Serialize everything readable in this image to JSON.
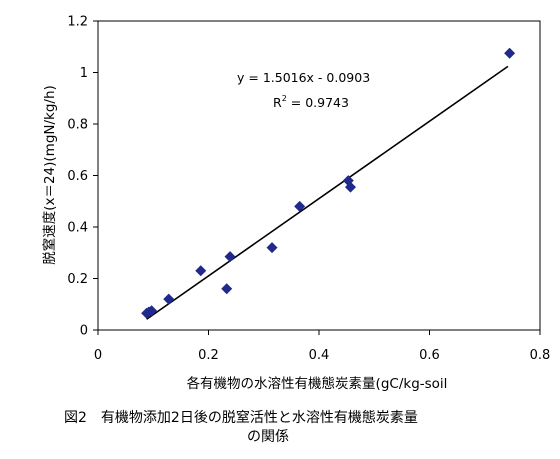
{
  "chart_data": {
    "type": "scatter",
    "xlabel": "各有機物の水溶性有機態炭素量(gC/kg-soil",
    "ylabel": "脱窒速度(x＝24)(mgN/kg/h)",
    "xlim": [
      0,
      0.8
    ],
    "ylim": [
      0,
      1.2
    ],
    "x_ticks": [
      "0",
      "0.2",
      "0.4",
      "0.6",
      "0.8"
    ],
    "y_ticks": [
      "0",
      "0.2",
      "0.4",
      "0.6",
      "0.8",
      "1",
      "1.2"
    ],
    "x_tick_values": [
      0,
      0.2,
      0.4,
      0.6,
      0.8
    ],
    "y_tick_values": [
      0,
      0.2,
      0.4,
      0.6,
      0.8,
      1.0,
      1.2
    ],
    "grid": false,
    "marker_color": "#1f2a8c",
    "points": [
      {
        "x": 0.088,
        "y": 0.065
      },
      {
        "x": 0.092,
        "y": 0.07
      },
      {
        "x": 0.097,
        "y": 0.075
      },
      {
        "x": 0.128,
        "y": 0.12
      },
      {
        "x": 0.186,
        "y": 0.23
      },
      {
        "x": 0.233,
        "y": 0.16
      },
      {
        "x": 0.239,
        "y": 0.285
      },
      {
        "x": 0.315,
        "y": 0.32
      },
      {
        "x": 0.365,
        "y": 0.48
      },
      {
        "x": 0.453,
        "y": 0.58
      },
      {
        "x": 0.457,
        "y": 0.555
      },
      {
        "x": 0.745,
        "y": 1.075
      }
    ],
    "trendline": {
      "slope": 1.5016,
      "intercept": -0.0903,
      "x_range": [
        0.088,
        0.742
      ],
      "equation": "y = 1.5016x - 0.0903",
      "r2_label": "R",
      "r2_exponent": "2",
      "r2_value": " = 0.9743"
    }
  },
  "caption": {
    "line1": "図2　有機物添加2日後の脱窒活性と水溶性有機態炭素量",
    "line2": "の関係"
  }
}
